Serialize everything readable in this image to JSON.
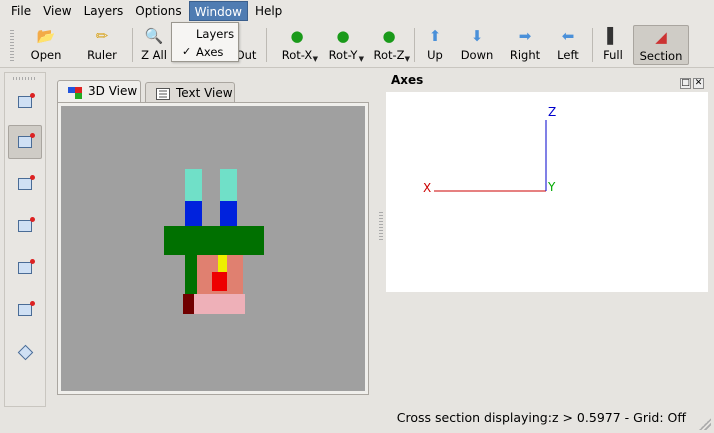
{
  "menu": {
    "file": "File",
    "view": "View",
    "layers": "Layers",
    "options": "Options",
    "window": "Window",
    "help": "Help"
  },
  "window_menu": {
    "layers": "Layers",
    "axes": "Axes",
    "axes_checked": "✓"
  },
  "toolbar": {
    "open": "Open",
    "ruler": "Ruler",
    "zoom_all": "Z All",
    "zoom_out": "Out",
    "rot_x": "Rot-X",
    "rot_y": "Rot-Y",
    "rot_z": "Rot-Z",
    "up": "Up",
    "down": "Down",
    "right": "Right",
    "left": "Left",
    "full": "Full",
    "section": "Section"
  },
  "tabs": {
    "view3d": "3D View",
    "text_view": "Text View"
  },
  "axes_panel": {
    "title": "Axes",
    "x_label": "X",
    "y_label": "Y",
    "z_label": "Z",
    "x_color": "#cc0000",
    "y_color": "#00aa00",
    "z_color": "#0000cc"
  },
  "status": {
    "text": "Cross section displaying:z > 0.5977 - Grid: Off"
  },
  "colors": {
    "menu_highlight": "#4f7cb2",
    "viewport_bg": "#a0a0a0"
  }
}
